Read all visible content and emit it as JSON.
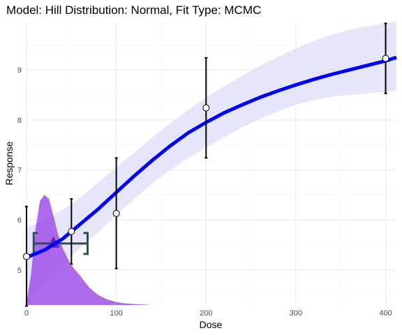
{
  "chart_data": {
    "type": "line",
    "title": "Model: Hill Distribution: Normal,  Fit Type: MCMC",
    "xlabel": "Dose",
    "ylabel": "Response",
    "xlim": [
      0,
      412
    ],
    "ylim": [
      4.3,
      9.95
    ],
    "x_ticks": [
      0,
      100,
      200,
      300,
      400
    ],
    "x_tick_labels": [
      "0",
      "100",
      "200",
      "300",
      "400"
    ],
    "y_ticks": [
      5,
      6,
      7,
      8,
      9
    ],
    "y_tick_labels": [
      "5",
      "6",
      "7",
      "8",
      "9"
    ],
    "grid": true,
    "legend": "none",
    "colors": {
      "fit_line": "#0000ff",
      "credible_band": "#e3e3fb",
      "bmd_density": "#a050e8",
      "bmd_marker": "#6a1fb0",
      "bmd_interval": "#2f4f4f",
      "error_bar": "#000000",
      "point_fill": "#ffffff",
      "grid": "#ebebeb"
    },
    "observations": [
      {
        "dose": 0,
        "response": 5.27,
        "lower": 4.28,
        "upper": 6.27
      },
      {
        "dose": 50,
        "response": 5.77,
        "lower": 5.12,
        "upper": 6.42
      },
      {
        "dose": 100,
        "response": 6.13,
        "lower": 5.03,
        "upper": 7.24
      },
      {
        "dose": 200,
        "response": 8.24,
        "lower": 7.24,
        "upper": 9.24
      },
      {
        "dose": 400,
        "response": 9.23,
        "lower": 8.53,
        "upper": 9.93
      }
    ],
    "fit": {
      "x": [
        0,
        20,
        40,
        60,
        80,
        100,
        120,
        140,
        160,
        180,
        200,
        220,
        240,
        260,
        280,
        300,
        320,
        340,
        360,
        380,
        400,
        412
      ],
      "y": [
        5.25,
        5.4,
        5.62,
        5.92,
        6.22,
        6.55,
        6.88,
        7.19,
        7.48,
        7.74,
        7.95,
        8.14,
        8.3,
        8.45,
        8.58,
        8.7,
        8.81,
        8.91,
        9.0,
        9.09,
        9.18,
        9.25
      ],
      "band_lower": [
        4.35,
        4.75,
        5.1,
        5.45,
        5.75,
        6.1,
        6.42,
        6.73,
        7.0,
        7.23,
        7.45,
        7.65,
        7.85,
        8.02,
        8.17,
        8.3,
        8.4,
        8.46,
        8.5,
        8.53,
        8.56,
        8.58
      ],
      "band_upper": [
        5.85,
        6.0,
        6.2,
        6.45,
        6.75,
        7.05,
        7.35,
        7.65,
        7.93,
        8.2,
        8.45,
        8.67,
        8.88,
        9.08,
        9.26,
        9.43,
        9.58,
        9.7,
        9.8,
        9.87,
        9.93,
        9.97
      ]
    },
    "bmd": {
      "value": 30,
      "lower": 8,
      "upper": 68,
      "response": 5.53
    },
    "bmd_density": {
      "x": [
        0,
        5,
        10,
        15,
        20,
        25,
        30,
        35,
        40,
        45,
        50,
        55,
        60,
        65,
        70,
        75,
        80,
        90,
        100,
        110,
        120,
        130,
        140
      ],
      "y": [
        4.34,
        4.9,
        5.82,
        6.38,
        6.5,
        6.42,
        6.08,
        5.72,
        5.44,
        5.26,
        5.1,
        4.98,
        4.88,
        4.76,
        4.65,
        4.57,
        4.5,
        4.41,
        4.36,
        4.33,
        4.32,
        4.31,
        4.3
      ]
    }
  }
}
